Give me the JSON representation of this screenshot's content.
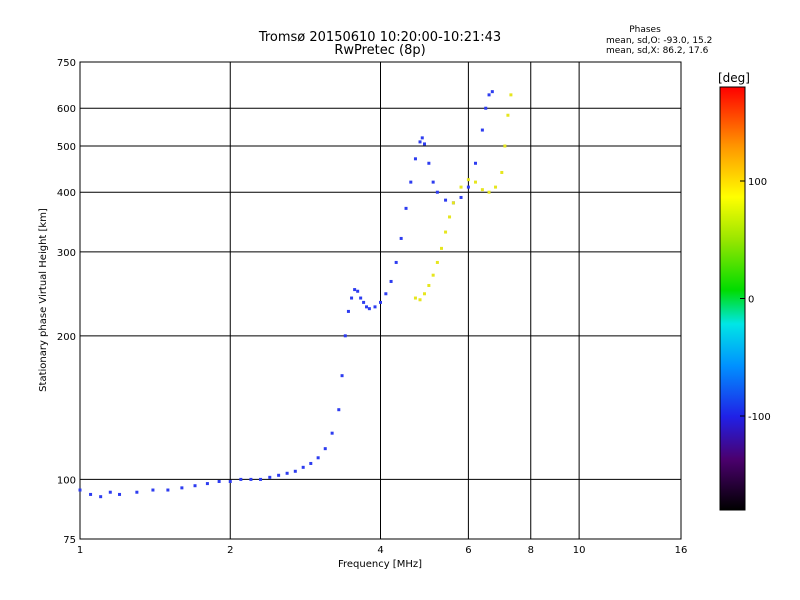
{
  "chart_data": {
    "type": "scatter",
    "title": "Tromsø 20150610 10:20:00-10:21:43",
    "subtitle": "RwPretec (8p)",
    "stats": {
      "heading": "Phases",
      "line1": "mean, sd,O: -93.0, 15.2",
      "line2": "mean, sd,X: 86.2, 17.6"
    },
    "xlabel": "Frequency [MHz]",
    "ylabel": "Stationary phase Virtual Height [km]",
    "xscale": "log",
    "yscale": "log",
    "xlim": [
      1,
      16
    ],
    "ylim": [
      75,
      750
    ],
    "xticks": [
      1,
      2,
      4,
      6,
      8,
      10,
      16
    ],
    "yticks": [
      75,
      100,
      200,
      300,
      400,
      500,
      600,
      750
    ],
    "grid": true,
    "colorbar": {
      "label": "[deg]",
      "min": -180,
      "max": 180,
      "ticks": [
        100,
        0,
        -100
      ],
      "colormap": "rainbow"
    },
    "series": [
      {
        "mode": "O",
        "phase_deg": -93,
        "color": "#2d3cf0",
        "x": [
          1.0,
          1.05,
          1.1,
          1.15,
          1.2,
          1.3,
          1.4,
          1.5,
          1.6,
          1.7,
          1.8,
          1.9,
          2.0,
          2.1,
          2.2,
          2.3,
          2.4,
          2.5,
          2.6,
          2.7,
          2.8,
          2.9,
          3.0,
          3.1,
          3.2,
          3.3,
          3.35,
          3.4,
          3.45,
          3.5,
          3.55,
          3.6,
          3.65,
          3.7,
          3.75,
          3.8,
          3.9,
          4.0,
          4.1,
          4.2,
          4.3,
          4.4,
          4.5,
          4.6,
          4.7,
          4.8,
          4.85,
          4.9,
          5.0,
          5.1,
          5.2,
          5.4,
          5.6,
          5.8,
          6.0,
          6.2,
          6.4,
          6.5,
          6.6,
          6.7
        ],
        "y": [
          95,
          93,
          92,
          94,
          93,
          94,
          95,
          95,
          96,
          97,
          98,
          99,
          99,
          100,
          100,
          100,
          101,
          102,
          103,
          104,
          106,
          108,
          111,
          116,
          125,
          140,
          165,
          200,
          225,
          240,
          250,
          248,
          240,
          235,
          230,
          228,
          230,
          235,
          245,
          260,
          285,
          320,
          370,
          420,
          470,
          510,
          520,
          505,
          460,
          420,
          400,
          385,
          380,
          390,
          410,
          460,
          540,
          600,
          640,
          650
        ]
      },
      {
        "mode": "X",
        "phase_deg": 86,
        "color": "#e6e61e",
        "x": [
          4.7,
          4.8,
          4.9,
          5.0,
          5.1,
          5.2,
          5.3,
          5.4,
          5.5,
          5.6,
          5.8,
          6.0,
          6.2,
          6.4,
          6.6,
          6.8,
          7.0,
          7.1,
          7.2,
          7.3
        ],
        "y": [
          240,
          238,
          245,
          255,
          268,
          285,
          305,
          330,
          355,
          380,
          410,
          425,
          420,
          405,
          400,
          410,
          440,
          500,
          580,
          640
        ]
      }
    ]
  }
}
